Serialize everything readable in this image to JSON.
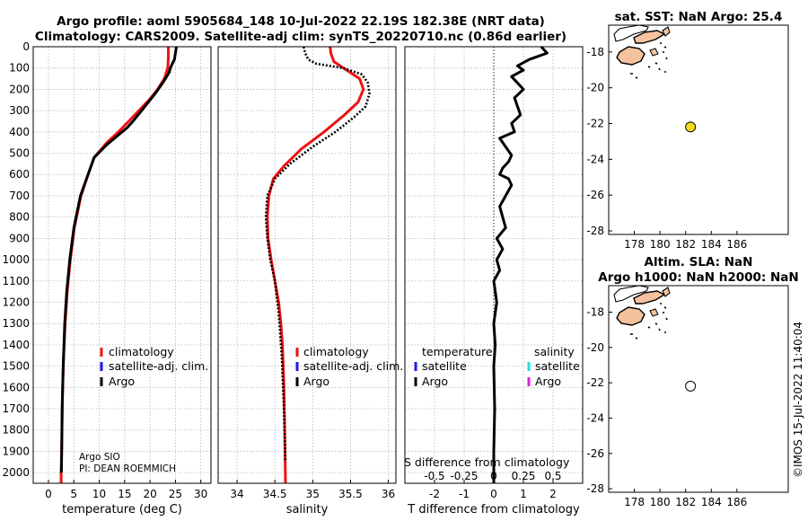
{
  "chart_data": [
    {
      "type": "line",
      "title_line1": "Argo profile: aoml 5905684_148 10-Jul-2022 22.19S 182.38E (NRT data)",
      "title_line2": "Climatology: CARS2009. Satellite-adj clim: synTS_20220710.nc (0.86d earlier)",
      "xlabel": "temperature (deg C)",
      "xlim": [
        -3,
        32
      ],
      "ylim": [
        0,
        2050
      ],
      "xticks": [
        "0",
        "5",
        "10",
        "15",
        "20",
        "25",
        "30"
      ],
      "yticks": [
        "0",
        "100",
        "200",
        "300",
        "400",
        "500",
        "600",
        "700",
        "800",
        "900",
        "1000",
        "1100",
        "1200",
        "1300",
        "1400",
        "1500",
        "1600",
        "1700",
        "1800",
        "1900",
        "2000"
      ],
      "legend": [
        {
          "label": "climatology",
          "color": "#ee1111"
        },
        {
          "label": "satellite-adj. clim.",
          "color": "#1a1aee"
        },
        {
          "label": "Argo",
          "color": "#000000"
        }
      ],
      "note_line1": "Argo SIO",
      "note_line2": "PI: DEAN ROEMMICH",
      "series": [
        {
          "name": "climatology",
          "color": "#ee1111",
          "style": "solid",
          "x": [
            23.6,
            23.6,
            23.5,
            22.8,
            21.5,
            19.8,
            17.8,
            15.8,
            13.8,
            11.5,
            9.0,
            7.8,
            6.4,
            5.1,
            4.3,
            3.7,
            3.3,
            3.0,
            2.8,
            2.7,
            2.6,
            2.5,
            2.5
          ],
          "y": [
            0,
            50,
            100,
            150,
            200,
            250,
            300,
            350,
            400,
            450,
            520,
            600,
            700,
            850,
            1000,
            1150,
            1300,
            1450,
            1600,
            1750,
            1900,
            2000,
            2050
          ]
        },
        {
          "name": "Argo",
          "color": "#000000",
          "style": "solid",
          "x": [
            25.2,
            25.0,
            24.8,
            24.0,
            23.8,
            22.5,
            21.0,
            19.0,
            17.0,
            15.5,
            13.5,
            11.5,
            9.0,
            7.8,
            6.3,
            5.0,
            4.2,
            3.6,
            3.2,
            2.9,
            2.7,
            2.6,
            2.55
          ],
          "y": [
            0,
            30,
            60,
            100,
            120,
            170,
            220,
            280,
            340,
            380,
            420,
            460,
            520,
            600,
            700,
            850,
            1000,
            1150,
            1300,
            1500,
            1700,
            1900,
            2000
          ]
        }
      ]
    },
    {
      "type": "line",
      "xlabel": "salinity",
      "xlim": [
        33.75,
        36.1
      ],
      "ylim": [
        0,
        2050
      ],
      "xticks": [
        "34",
        "34.5",
        "35",
        "35.5",
        "36"
      ],
      "legend": [
        {
          "label": "climatology",
          "color": "#ee1111"
        },
        {
          "label": "satellite-adj. clim.",
          "color": "#1a1aee"
        },
        {
          "label": "Argo",
          "color": "#000000"
        }
      ],
      "series": [
        {
          "name": "climatology",
          "color": "#ee1111",
          "style": "solid",
          "x": [
            35.23,
            35.24,
            35.28,
            35.45,
            35.62,
            35.67,
            35.6,
            35.42,
            35.15,
            34.85,
            34.62,
            34.48,
            34.42,
            34.4,
            34.41,
            34.45,
            34.5,
            34.55,
            34.58,
            34.6,
            34.62,
            34.63,
            34.64
          ],
          "y": [
            0,
            30,
            70,
            110,
            150,
            200,
            260,
            320,
            400,
            480,
            560,
            620,
            700,
            800,
            900,
            1000,
            1100,
            1200,
            1300,
            1400,
            1600,
            1800,
            2050
          ]
        },
        {
          "name": "Argo",
          "color": "#000000",
          "style": "dotted",
          "x": [
            34.88,
            34.9,
            34.94,
            35.05,
            35.4,
            35.65,
            35.73,
            35.75,
            35.7,
            35.55,
            35.3,
            35.0,
            34.7,
            34.5,
            34.4,
            34.38,
            34.4,
            34.44,
            34.5,
            34.55,
            34.59,
            34.62,
            34.64
          ],
          "y": [
            0,
            30,
            60,
            80,
            100,
            130,
            170,
            220,
            280,
            330,
            400,
            470,
            550,
            620,
            700,
            800,
            900,
            1000,
            1100,
            1250,
            1450,
            1700,
            1950
          ]
        }
      ]
    },
    {
      "type": "line",
      "xlabel": "T difference from climatology",
      "xlabel2": "S difference from climatology",
      "xlim": [
        -3,
        3
      ],
      "ylim": [
        0,
        2050
      ],
      "xticks": [
        "-2",
        "-1",
        "0",
        "1",
        "2"
      ],
      "xticks2": [
        "-0.5",
        "-0.25",
        "0",
        "0.25",
        "0.5"
      ],
      "legend_temperature_title": "temperature",
      "legend_salinity_title": "salinity",
      "legend_temperature": [
        {
          "label": "satellite",
          "color": "#1a1aee"
        },
        {
          "label": "Argo",
          "color": "#000000"
        }
      ],
      "legend_salinity": [
        {
          "label": "satellite",
          "color": "#22dddd"
        },
        {
          "label": "Argo",
          "color": "#dd22dd"
        }
      ],
      "series": [
        {
          "name": "Argo T diff",
          "color": "#000000",
          "style": "solid",
          "x": [
            1.6,
            1.8,
            1.2,
            0.8,
            1.0,
            0.6,
            0.8,
            1.0,
            0.7,
            0.8,
            0.9,
            0.6,
            0.7,
            0.2,
            0.4,
            0.6,
            0.5,
            0.3,
            0.2,
            0.5,
            0.6,
            0.4,
            0.2,
            0.3,
            0.4,
            0.1,
            0.3,
            0.1,
            0.2,
            0.0,
            0.1,
            0.0,
            0.05,
            0.0,
            0.03,
            0.0,
            0.0
          ],
          "y": [
            0,
            30,
            60,
            90,
            110,
            140,
            170,
            200,
            240,
            280,
            320,
            360,
            400,
            430,
            470,
            510,
            540,
            570,
            600,
            620,
            650,
            700,
            750,
            800,
            850,
            900,
            950,
            1000,
            1050,
            1100,
            1200,
            1300,
            1400,
            1500,
            1700,
            1900,
            2050
          ]
        }
      ]
    },
    {
      "type": "scatter",
      "title": "sat. SST: NaN Argo: 25.4",
      "xlim": [
        176,
        190
      ],
      "ylim": [
        -28.2,
        -16.5
      ],
      "xticks": [
        "178",
        "180",
        "182",
        "184",
        "186"
      ],
      "yticks": [
        "-18",
        "-20",
        "-22",
        "-24",
        "-26",
        "-28"
      ],
      "points": [
        {
          "x": 182.38,
          "y": -22.19,
          "fill": "#f2dc1f"
        }
      ]
    },
    {
      "type": "scatter",
      "title_line1": "Altim. SLA: NaN",
      "title_line2": "Argo h1000: NaN h2000: NaN",
      "xlim": [
        176,
        190
      ],
      "ylim": [
        -28.2,
        -16.5
      ],
      "xticks": [
        "178",
        "180",
        "182",
        "184",
        "186"
      ],
      "yticks": [
        "-18",
        "-20",
        "-22",
        "-24",
        "-26",
        "-28"
      ],
      "points": [
        {
          "x": 182.38,
          "y": -22.19,
          "fill": "#ffffff"
        }
      ]
    }
  ],
  "credit": "©IMOS 15-Jul-2022 11:40:04"
}
